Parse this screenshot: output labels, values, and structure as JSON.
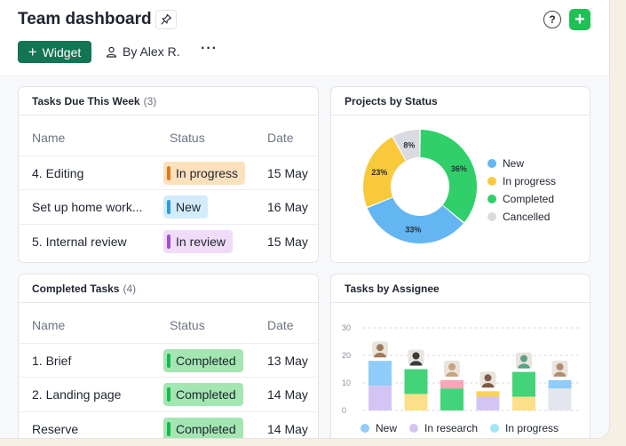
{
  "header": {
    "title": "Team dashboard",
    "widget_label": "Widget",
    "by_user": "By Alex R.",
    "more": "···",
    "help": "?",
    "add": "+"
  },
  "tasks_due": {
    "title": "Tasks Due This Week",
    "count": "(3)",
    "columns": [
      "Name",
      "Status",
      "Date"
    ],
    "rows": [
      {
        "name": "4. Editing",
        "status": "In progress",
        "date": "15 May"
      },
      {
        "name": "Set up home work...",
        "status": "New",
        "date": "16 May"
      },
      {
        "name": "5. Internal review",
        "status": "In review",
        "date": "15 May"
      }
    ]
  },
  "completed_tasks": {
    "title": "Completed Tasks",
    "count": "(4)",
    "columns": [
      "Name",
      "Status",
      "Date"
    ],
    "rows": [
      {
        "name": "1. Brief",
        "status": "Completed",
        "date": "13 May"
      },
      {
        "name": "2. Landing page",
        "status": "Completed",
        "date": "14 May"
      },
      {
        "name": "Reserve",
        "status": "Completed",
        "date": "14 May"
      }
    ]
  },
  "projects_by_status": {
    "title": "Projects by Status",
    "slices": [
      {
        "name": "New",
        "value": 33,
        "label": "33%",
        "color": "#63b6f2"
      },
      {
        "name": "In progress",
        "value": 23,
        "label": "23%",
        "color": "#f9c93c"
      },
      {
        "name": "Completed",
        "value": 36,
        "label": "36%",
        "color": "#31cf6a"
      },
      {
        "name": "Cancelled",
        "value": 8,
        "label": "8%",
        "color": "#d9dbe0"
      }
    ]
  },
  "tasks_by_assignee": {
    "title": "Tasks by Assignee",
    "y_ticks": [
      "30",
      "20",
      "10",
      "0"
    ],
    "legend": [
      {
        "name": "New",
        "color": "#8fccf7"
      },
      {
        "name": "In research",
        "color": "#d3c5f3"
      },
      {
        "name": "In progress",
        "color": "#9fe6f6"
      }
    ]
  },
  "colors": {
    "in_progress_bg": "#fde1bd",
    "in_progress_bar": "#e07a17",
    "new_bg": "#d2ecfb",
    "new_bar": "#2f9bdf",
    "in_review_bg": "#f0dcf8",
    "in_review_bar": "#a44ad6",
    "completed_bg": "#a3e6b2",
    "completed_bar": "#17b84e"
  },
  "chart_data": [
    {
      "type": "pie",
      "title": "Projects by Status",
      "categories": [
        "New",
        "In progress",
        "Completed",
        "Cancelled"
      ],
      "values": [
        33,
        23,
        36,
        8
      ]
    },
    {
      "type": "bar",
      "title": "Tasks by Assignee",
      "ylim": [
        0,
        30
      ],
      "legend_position": "bottom",
      "series": [
        {
          "name": "bottom",
          "values": [
            9,
            6,
            8,
            5,
            5,
            8
          ]
        },
        {
          "name": "top",
          "values": [
            9,
            9,
            3,
            2,
            9,
            3
          ]
        }
      ],
      "bottom_colors": [
        "#d3c5f3",
        "#fbe08a",
        "#43d37a",
        "#d3c5f3",
        "#fbe08a",
        "#e4e6ee"
      ],
      "top_colors": [
        "#8fccf7",
        "#43d37a",
        "#f8a6b8",
        "#fbd25a",
        "#43d37a",
        "#8fccf7"
      ]
    }
  ]
}
